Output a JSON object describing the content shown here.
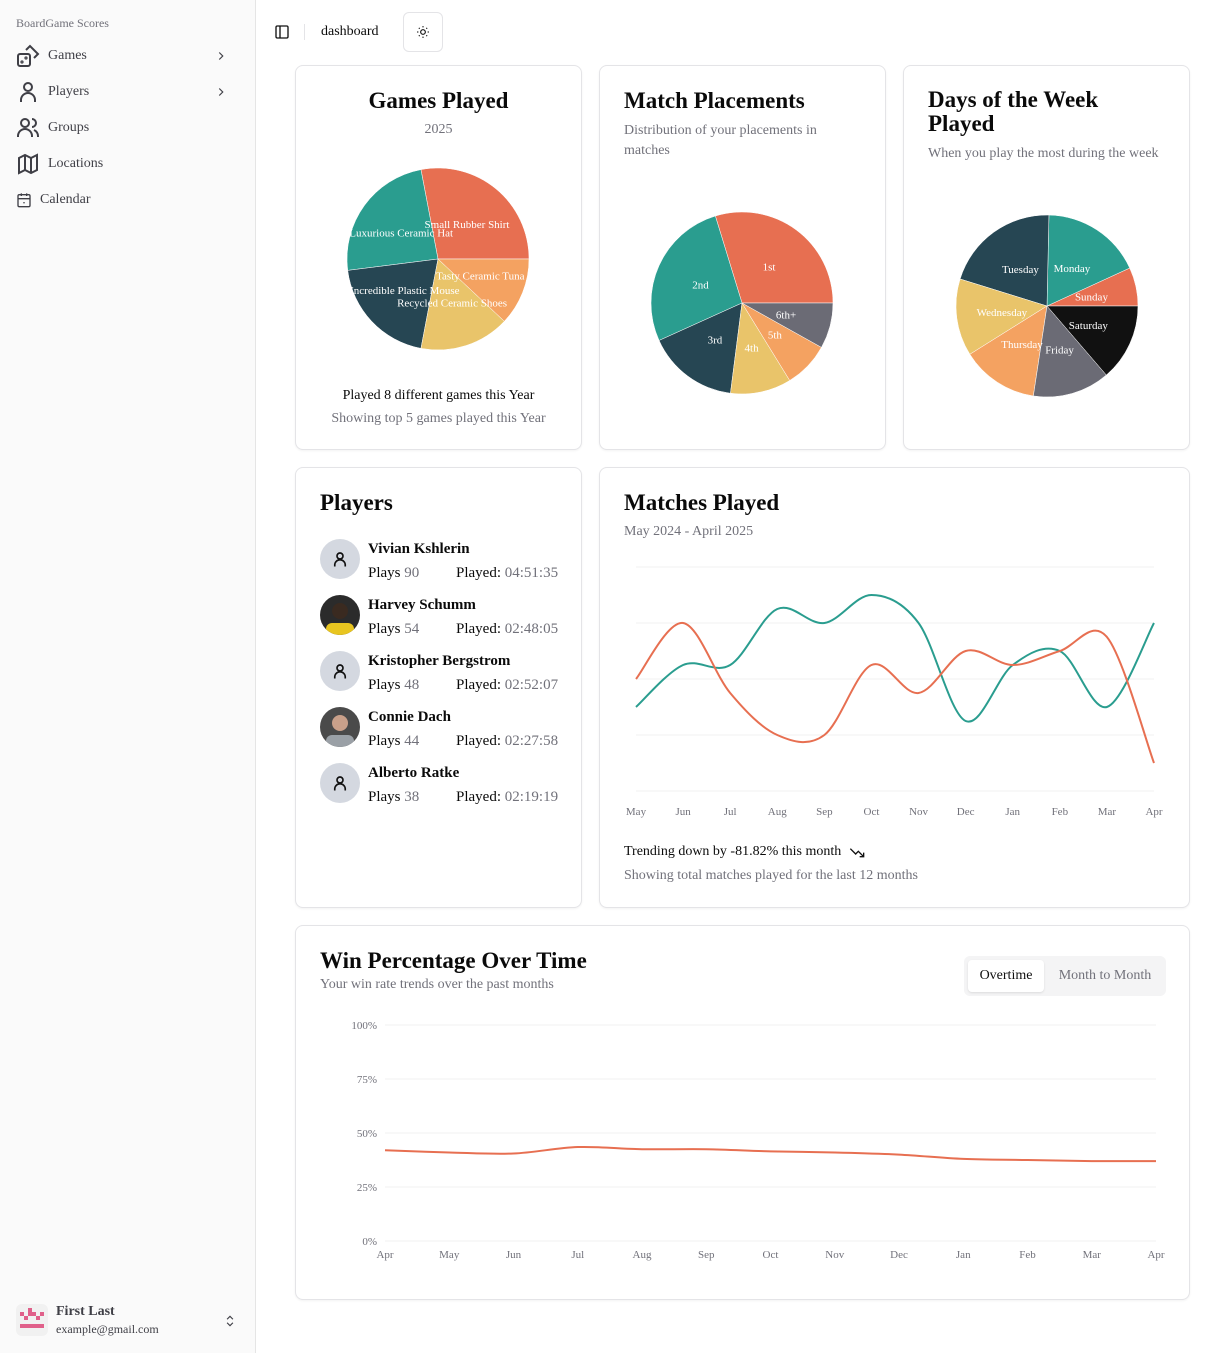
{
  "sidebar": {
    "brand": "BoardGame Scores",
    "items": [
      {
        "label": "Games",
        "icon": "dice-icon",
        "expandable": true
      },
      {
        "label": "Players",
        "icon": "user-icon",
        "expandable": true
      },
      {
        "label": "Groups",
        "icon": "users-icon"
      },
      {
        "label": "Locations",
        "icon": "map-icon"
      },
      {
        "label": "Calendar",
        "icon": "calendar-icon"
      }
    ],
    "user": {
      "name": "First Last",
      "email": "example@gmail.com"
    }
  },
  "header": {
    "breadcrumb": "dashboard"
  },
  "colors": {
    "teal": "#2a9d8f",
    "orange": "#e76f51",
    "navy": "#264653",
    "yellow": "#e9c46a",
    "peach": "#f4a261",
    "gray": "#6b6b75",
    "black": "#111111"
  },
  "games_played": {
    "title": "Games Played",
    "subtitle": "2025",
    "footer": "Played 8 different games this Year",
    "footer_sub": "Showing top 5 games played this Year"
  },
  "match_placements": {
    "title": "Match Placements",
    "subtitle": "Distribution of your placements in matches"
  },
  "days_of_week": {
    "title": "Days of the Week Played",
    "subtitle": "When you play the most during the week"
  },
  "players": {
    "title": "Players",
    "plays_label": "Plays",
    "played_label": "Played:",
    "list": [
      {
        "name": "Vivian Kshlerin",
        "plays": "90",
        "played": "04:51:35",
        "avatar": "default"
      },
      {
        "name": "Harvey Schumm",
        "plays": "54",
        "played": "02:48:05",
        "avatar": "photo"
      },
      {
        "name": "Kristopher Bergstrom",
        "plays": "48",
        "played": "02:52:07",
        "avatar": "default"
      },
      {
        "name": "Connie Dach",
        "plays": "44",
        "played": "02:27:58",
        "avatar": "photo"
      },
      {
        "name": "Alberto Ratke",
        "plays": "38",
        "played": "02:19:19",
        "avatar": "default"
      }
    ]
  },
  "matches_played": {
    "title": "Matches Played",
    "subtitle": "May 2024 - April 2025",
    "trend": "Trending down by -81.82% this month",
    "trend_icon": "trending-down-icon",
    "footer": "Showing total matches played for the last 12 months"
  },
  "win_percentage": {
    "title": "Win Percentage Over Time",
    "subtitle": "Your win rate trends over the past months",
    "toggle": [
      "Overtime",
      "Month to Month"
    ],
    "selected": "Overtime"
  },
  "chart_data": [
    {
      "type": "pie",
      "categories": [
        "Small Rubber Shirt",
        "Luxurious Ceramic Hat",
        "Incredible Plastic Mouse",
        "Recycled Ceramic Shoes",
        "Tasty Ceramic Tuna"
      ],
      "values": [
        7,
        6,
        5,
        4,
        3
      ],
      "colors": [
        "#e76f51",
        "#2a9d8f",
        "#264653",
        "#e9c46a",
        "#f4a261"
      ]
    },
    {
      "type": "pie",
      "categories": [
        "1st",
        "2nd",
        "3rd",
        "4th",
        "5th",
        "6th+"
      ],
      "values": [
        11,
        10,
        6,
        4,
        3,
        3
      ],
      "colors": [
        "#e76f51",
        "#2a9d8f",
        "#264653",
        "#e9c46a",
        "#f4a261",
        "#6b6b75"
      ]
    },
    {
      "type": "pie",
      "categories": [
        "Sunday",
        "Monday",
        "Tuesday",
        "Wednesday",
        "Thursday",
        "Friday",
        "Saturday"
      ],
      "values": [
        5,
        13,
        15,
        10,
        10,
        10,
        10
      ],
      "colors": [
        "#e76f51",
        "#2a9d8f",
        "#264653",
        "#e9c46a",
        "#f4a261",
        "#6b6b75",
        "#111111"
      ]
    },
    {
      "type": "line",
      "categories": [
        "May",
        "Jun",
        "Jul",
        "Aug",
        "Sep",
        "Oct",
        "Nov",
        "Dec",
        "Jan",
        "Feb",
        "Mar",
        "Apr"
      ],
      "ylim": [
        0,
        16
      ],
      "grid": true,
      "series": [
        {
          "values": [
            6,
            9,
            9,
            13,
            12,
            14,
            12,
            5,
            9,
            10,
            6,
            12
          ],
          "color": "#2a9d8f"
        },
        {
          "values": [
            8,
            12,
            7,
            4,
            4,
            9,
            7,
            10,
            9,
            10,
            11,
            2
          ],
          "color": "#e76f51"
        }
      ]
    },
    {
      "type": "line",
      "categories": [
        "Apr",
        "May",
        "Jun",
        "Jul",
        "Aug",
        "Sep",
        "Oct",
        "Nov",
        "Dec",
        "Jan",
        "Feb",
        "Mar",
        "Apr"
      ],
      "ylim": [
        0,
        100
      ],
      "yticks": [
        "0%",
        "25%",
        "50%",
        "75%",
        "100%"
      ],
      "grid": true,
      "series": [
        {
          "values": [
            42,
            41,
            40.5,
            43.5,
            42.5,
            42.5,
            41.5,
            41,
            40,
            38,
            37.5,
            37,
            37
          ],
          "color": "#e76f51"
        }
      ]
    }
  ]
}
